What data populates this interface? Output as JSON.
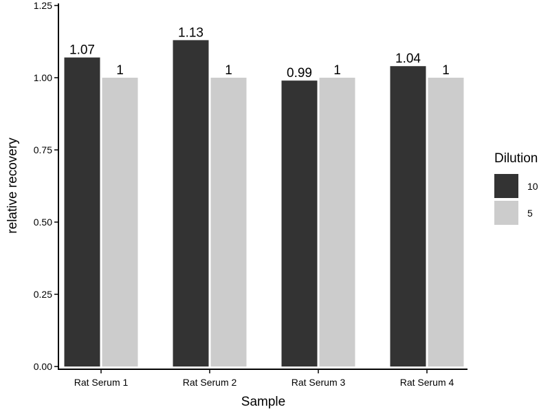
{
  "chart_data": {
    "type": "bar",
    "title": "",
    "xlabel": "Sample",
    "ylabel": "relative recovery",
    "ylim": [
      0,
      1.25
    ],
    "yticks": [
      "0.00",
      "0.25",
      "0.50",
      "0.75",
      "1.00",
      "1.25"
    ],
    "categories": [
      "Rat Serum 1",
      "Rat Serum 2",
      "Rat Serum 3",
      "Rat Serum 4"
    ],
    "series": [
      {
        "name": "10",
        "color": "#333333",
        "values": [
          1.07,
          1.13,
          0.99,
          1.04
        ],
        "labels": [
          "1.07",
          "1.13",
          "0.99",
          "1.04"
        ]
      },
      {
        "name": "5",
        "color": "#cccccc",
        "values": [
          1,
          1,
          1,
          1
        ],
        "labels": [
          "1",
          "1",
          "1",
          "1"
        ]
      }
    ],
    "legend": {
      "title": "Dilution",
      "position": "right"
    },
    "grid": false
  }
}
